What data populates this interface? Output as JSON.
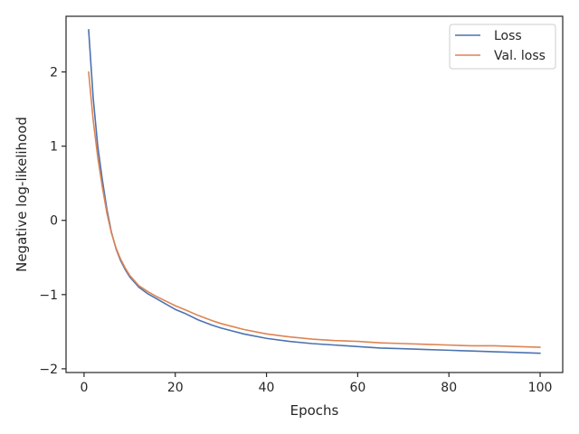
{
  "chart_data": {
    "type": "line",
    "title": "",
    "xlabel": "Epochs",
    "ylabel": "Negative log-likelihood",
    "xlim": [
      -3.95,
      104.95
    ],
    "ylim": [
      -2.05,
      2.75
    ],
    "xticks": [
      0,
      20,
      40,
      60,
      80,
      100
    ],
    "yticks": [
      -2,
      -1,
      0,
      1,
      2
    ],
    "ytick_labels": [
      "−2",
      "−1",
      "0",
      "1",
      "2"
    ],
    "grid": false,
    "legend_position": "top-right",
    "series": [
      {
        "name": "Loss",
        "color": "#4c72b0",
        "x": [
          1,
          2,
          3,
          4,
          5,
          6,
          7,
          8,
          9,
          10,
          12,
          14,
          16,
          18,
          20,
          22,
          25,
          28,
          30,
          35,
          40,
          45,
          50,
          55,
          60,
          65,
          70,
          75,
          80,
          85,
          90,
          95,
          100
        ],
        "y": [
          2.57,
          1.65,
          1.0,
          0.55,
          0.15,
          -0.16,
          -0.38,
          -0.54,
          -0.66,
          -0.76,
          -0.9,
          -0.99,
          -1.06,
          -1.13,
          -1.2,
          -1.25,
          -1.34,
          -1.41,
          -1.45,
          -1.53,
          -1.59,
          -1.63,
          -1.66,
          -1.68,
          -1.7,
          -1.72,
          -1.73,
          -1.74,
          -1.75,
          -1.76,
          -1.77,
          -1.78,
          -1.79
        ]
      },
      {
        "name": "Val. loss",
        "color": "#dd8452",
        "x": [
          1,
          2,
          3,
          4,
          5,
          6,
          7,
          8,
          9,
          10,
          12,
          14,
          16,
          18,
          20,
          22,
          25,
          28,
          30,
          35,
          40,
          45,
          50,
          55,
          60,
          65,
          70,
          75,
          80,
          85,
          90,
          95,
          100
        ],
        "y": [
          2.0,
          1.35,
          0.85,
          0.45,
          0.1,
          -0.17,
          -0.37,
          -0.52,
          -0.64,
          -0.74,
          -0.88,
          -0.96,
          -1.03,
          -1.09,
          -1.15,
          -1.2,
          -1.28,
          -1.35,
          -1.39,
          -1.47,
          -1.53,
          -1.57,
          -1.6,
          -1.62,
          -1.63,
          -1.65,
          -1.66,
          -1.67,
          -1.68,
          -1.69,
          -1.69,
          -1.7,
          -1.71
        ]
      }
    ]
  }
}
